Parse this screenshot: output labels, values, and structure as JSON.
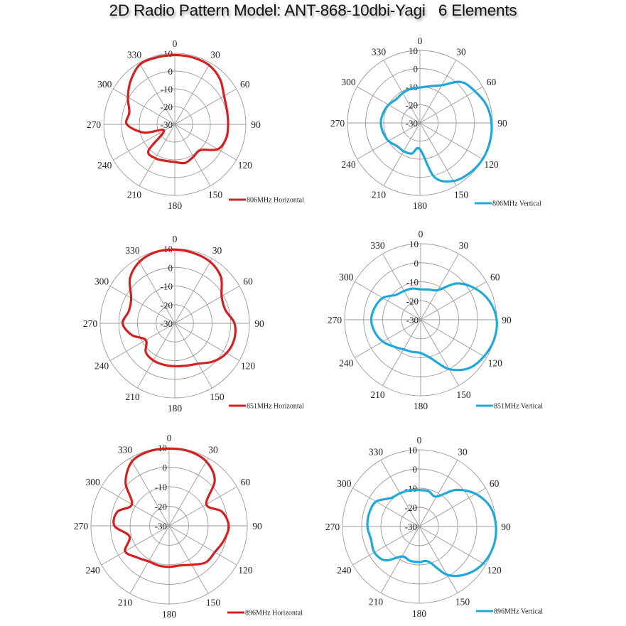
{
  "title": "2D Radio Pattern Model: ANT-868-10dbi-Yagi   6 Elements",
  "colors": {
    "horizontal": "#d42020",
    "vertical": "#20a8dc"
  },
  "axis": {
    "angle_labels": [
      "0",
      "30",
      "60",
      "90",
      "120",
      "150",
      "180",
      "210",
      "240",
      "270",
      "300",
      "330"
    ],
    "radial_labels": [
      "10",
      "0",
      "-10",
      "-20",
      "-30"
    ],
    "rmin": -30,
    "rmax": 10
  },
  "chart_data": [
    {
      "type": "polar",
      "name": "806MHz Horizontal",
      "legend": "806MHz Horizontal",
      "color_key": "horizontal",
      "theta_deg": [
        0,
        15,
        30,
        45,
        60,
        75,
        90,
        105,
        120,
        135,
        150,
        165,
        180,
        195,
        210,
        225,
        240,
        255,
        270,
        285,
        300,
        315,
        330,
        345
      ],
      "r_db": [
        9,
        9,
        8.5,
        6,
        2,
        0.4,
        0,
        0,
        -2,
        -9.5,
        -9,
        -7.5,
        -8.8,
        -8.8,
        -8,
        -9,
        -23,
        -12,
        -3,
        -3.5,
        0.5,
        5,
        9,
        9
      ],
      "rlim": [
        -30,
        10
      ],
      "grid": true,
      "legend_position": "bottom-right"
    },
    {
      "type": "polar",
      "name": "806MHz Vertical",
      "legend": "806MHz Vertical",
      "color_key": "vertical",
      "theta_deg": [
        0,
        15,
        30,
        45,
        60,
        75,
        90,
        105,
        120,
        135,
        150,
        165,
        180,
        195,
        210,
        225,
        240,
        255,
        270,
        285,
        300,
        315,
        330,
        345
      ],
      "r_db": [
        -10.5,
        -9,
        -6,
        2,
        5,
        8,
        9.5,
        10,
        10,
        9,
        7,
        1,
        -15.5,
        -12.5,
        -12,
        -12,
        -10,
        -9,
        -8.4,
        -9,
        -10,
        -11.5,
        -11,
        -10.5
      ],
      "rlim": [
        -30,
        10
      ],
      "grid": true,
      "legend_position": "bottom-right"
    },
    {
      "type": "polar",
      "name": "851MHz Horizontal",
      "legend": "851MHz Horizontal",
      "color_key": "horizontal",
      "theta_deg": [
        0,
        15,
        30,
        45,
        60,
        75,
        90,
        105,
        120,
        135,
        150,
        165,
        180,
        195,
        210,
        225,
        240,
        255,
        270,
        285,
        300,
        315,
        330,
        345
      ],
      "r_db": [
        9.5,
        9,
        8,
        5,
        -1,
        -2,
        2,
        3,
        2,
        -1,
        -5,
        -6.5,
        -7,
        -7,
        -7,
        -8,
        -12,
        -6,
        -2,
        -4.5,
        -3,
        4,
        8,
        9.5
      ],
      "rlim": [
        -30,
        10
      ],
      "grid": true,
      "legend_position": "bottom-right"
    },
    {
      "type": "polar",
      "name": "851MHz Vertical",
      "legend": "851MHz Vertical",
      "color_key": "vertical",
      "theta_deg": [
        0,
        15,
        30,
        45,
        60,
        75,
        90,
        105,
        120,
        135,
        150,
        165,
        180,
        195,
        210,
        225,
        240,
        255,
        270,
        285,
        300,
        315,
        330,
        345
      ],
      "r_db": [
        -14,
        -13.5,
        -12,
        -3,
        3,
        7.5,
        10,
        10,
        8.5,
        6,
        0,
        -9,
        -12.5,
        -12.5,
        -12,
        -10,
        -7,
        -5,
        -4,
        -5,
        -7,
        -11.5,
        -12.5,
        -13
      ],
      "rlim": [
        -30,
        10
      ],
      "grid": true,
      "legend_position": "bottom-right"
    },
    {
      "type": "polar",
      "name": "896MHz Horizontal",
      "legend": "896MHz Horizontal",
      "color_key": "horizontal",
      "theta_deg": [
        0,
        15,
        30,
        45,
        60,
        75,
        90,
        105,
        120,
        135,
        150,
        165,
        180,
        195,
        210,
        225,
        240,
        255,
        270,
        285,
        300,
        315,
        330,
        345
      ],
      "r_db": [
        9.5,
        9.5,
        8,
        3,
        -8,
        -2,
        0.5,
        -1,
        -3,
        -3.5,
        -7,
        -9,
        -9,
        -9,
        -9,
        -7,
        -4,
        -9,
        -2,
        -2.5,
        -8,
        1.5,
        8,
        9.5
      ],
      "rlim": [
        -30,
        10
      ],
      "grid": true,
      "legend_position": "bottom-right"
    },
    {
      "type": "polar",
      "name": "896MHz Vertical",
      "legend": "896MHz Vertical",
      "color_key": "vertical",
      "theta_deg": [
        0,
        15,
        30,
        45,
        60,
        75,
        90,
        105,
        120,
        135,
        150,
        165,
        180,
        195,
        210,
        225,
        240,
        255,
        270,
        285,
        300,
        315,
        330,
        345
      ],
      "r_db": [
        -11,
        -11,
        -12,
        -3,
        4,
        8.5,
        10,
        10,
        8.5,
        5,
        -1,
        -11,
        -11.5,
        -11.5,
        -12,
        -5,
        -3,
        -4,
        -3,
        -3,
        -4,
        -9,
        -10,
        -10.5
      ],
      "rlim": [
        -30,
        10
      ],
      "grid": true,
      "legend_position": "bottom-right"
    }
  ]
}
